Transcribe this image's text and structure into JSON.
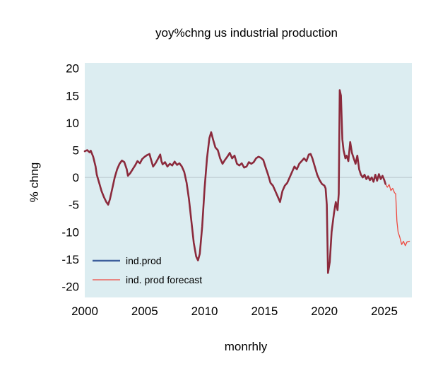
{
  "chart_data": {
    "type": "line",
    "title": "yoy%chng us industrial production",
    "xlabel": "monrhly",
    "ylabel": "% chng",
    "xlim": [
      2000,
      2027.3
    ],
    "ylim": [
      -22,
      21
    ],
    "xticks": [
      2000,
      2005,
      2010,
      2015,
      2020,
      2025
    ],
    "yticks": [
      20,
      15,
      10,
      5,
      0,
      -5,
      -10,
      -15,
      -20
    ],
    "grid": "horizontal line at 0",
    "legend_position": "bottom-left",
    "background": "#dcedf1",
    "series": [
      {
        "name": "ind.prod",
        "color": "#8b2a3c",
        "legend_color": "#3d5f9c",
        "points": [
          [
            2000.0,
            4.8
          ],
          [
            2000.2,
            5.0
          ],
          [
            2000.4,
            4.6
          ],
          [
            2000.5,
            4.9
          ],
          [
            2000.7,
            3.8
          ],
          [
            2000.9,
            2.0
          ],
          [
            2001.0,
            0.5
          ],
          [
            2001.2,
            -1.0
          ],
          [
            2001.4,
            -2.5
          ],
          [
            2001.6,
            -3.6
          ],
          [
            2001.8,
            -4.5
          ],
          [
            2001.95,
            -5.0
          ],
          [
            2002.1,
            -4.0
          ],
          [
            2002.3,
            -2.0
          ],
          [
            2002.5,
            0.0
          ],
          [
            2002.7,
            1.5
          ],
          [
            2002.9,
            2.5
          ],
          [
            2003.1,
            3.1
          ],
          [
            2003.3,
            2.8
          ],
          [
            2003.5,
            1.5
          ],
          [
            2003.6,
            0.3
          ],
          [
            2003.8,
            0.8
          ],
          [
            2004.0,
            1.5
          ],
          [
            2004.2,
            2.2
          ],
          [
            2004.4,
            3.0
          ],
          [
            2004.6,
            2.6
          ],
          [
            2004.8,
            3.4
          ],
          [
            2005.0,
            3.8
          ],
          [
            2005.2,
            4.1
          ],
          [
            2005.4,
            4.3
          ],
          [
            2005.5,
            3.5
          ],
          [
            2005.7,
            2.0
          ],
          [
            2005.9,
            2.6
          ],
          [
            2006.1,
            3.4
          ],
          [
            2006.3,
            4.2
          ],
          [
            2006.4,
            3.0
          ],
          [
            2006.5,
            2.4
          ],
          [
            2006.7,
            2.8
          ],
          [
            2006.9,
            2.0
          ],
          [
            2007.1,
            2.5
          ],
          [
            2007.3,
            2.2
          ],
          [
            2007.5,
            2.9
          ],
          [
            2007.7,
            2.3
          ],
          [
            2007.9,
            2.6
          ],
          [
            2008.1,
            2.0
          ],
          [
            2008.3,
            1.0
          ],
          [
            2008.5,
            -1.0
          ],
          [
            2008.7,
            -4.0
          ],
          [
            2008.9,
            -8.0
          ],
          [
            2009.1,
            -12.0
          ],
          [
            2009.3,
            -14.5
          ],
          [
            2009.45,
            -15.2
          ],
          [
            2009.6,
            -14.0
          ],
          [
            2009.8,
            -9.0
          ],
          [
            2010.0,
            -2.0
          ],
          [
            2010.2,
            3.5
          ],
          [
            2010.4,
            7.2
          ],
          [
            2010.55,
            8.3
          ],
          [
            2010.7,
            7.0
          ],
          [
            2010.9,
            5.5
          ],
          [
            2011.1,
            5.0
          ],
          [
            2011.3,
            3.5
          ],
          [
            2011.5,
            2.5
          ],
          [
            2011.7,
            3.2
          ],
          [
            2011.9,
            3.8
          ],
          [
            2012.1,
            4.5
          ],
          [
            2012.3,
            3.5
          ],
          [
            2012.5,
            4.0
          ],
          [
            2012.7,
            2.5
          ],
          [
            2012.9,
            2.2
          ],
          [
            2013.1,
            2.6
          ],
          [
            2013.3,
            1.8
          ],
          [
            2013.5,
            2.0
          ],
          [
            2013.7,
            2.8
          ],
          [
            2013.9,
            2.5
          ],
          [
            2014.1,
            2.8
          ],
          [
            2014.3,
            3.5
          ],
          [
            2014.5,
            3.8
          ],
          [
            2014.7,
            3.6
          ],
          [
            2014.9,
            3.2
          ],
          [
            2015.1,
            1.8
          ],
          [
            2015.3,
            0.5
          ],
          [
            2015.5,
            -1.0
          ],
          [
            2015.7,
            -1.5
          ],
          [
            2015.9,
            -2.5
          ],
          [
            2016.1,
            -3.5
          ],
          [
            2016.3,
            -4.5
          ],
          [
            2016.5,
            -2.5
          ],
          [
            2016.7,
            -1.5
          ],
          [
            2016.9,
            -1.0
          ],
          [
            2017.1,
            0.0
          ],
          [
            2017.3,
            1.0
          ],
          [
            2017.5,
            2.0
          ],
          [
            2017.7,
            1.5
          ],
          [
            2017.9,
            2.5
          ],
          [
            2018.1,
            3.0
          ],
          [
            2018.3,
            3.5
          ],
          [
            2018.5,
            3.0
          ],
          [
            2018.7,
            4.2
          ],
          [
            2018.85,
            4.3
          ],
          [
            2019.0,
            3.5
          ],
          [
            2019.2,
            2.0
          ],
          [
            2019.4,
            0.5
          ],
          [
            2019.6,
            -0.5
          ],
          [
            2019.8,
            -1.2
          ],
          [
            2020.0,
            -1.5
          ],
          [
            2020.1,
            -2.0
          ],
          [
            2020.2,
            -5.0
          ],
          [
            2020.3,
            -17.5
          ],
          [
            2020.45,
            -15.5
          ],
          [
            2020.6,
            -10.0
          ],
          [
            2020.8,
            -6.5
          ],
          [
            2020.95,
            -4.5
          ],
          [
            2021.1,
            -6.0
          ],
          [
            2021.2,
            -3.0
          ],
          [
            2021.28,
            16.0
          ],
          [
            2021.38,
            15.0
          ],
          [
            2021.5,
            7.0
          ],
          [
            2021.6,
            5.0
          ],
          [
            2021.75,
            3.5
          ],
          [
            2021.85,
            4.0
          ],
          [
            2022.0,
            3.0
          ],
          [
            2022.15,
            6.5
          ],
          [
            2022.3,
            4.5
          ],
          [
            2022.45,
            3.5
          ],
          [
            2022.6,
            2.5
          ],
          [
            2022.75,
            4.0
          ],
          [
            2022.9,
            1.5
          ],
          [
            2023.05,
            0.5
          ],
          [
            2023.2,
            0.0
          ],
          [
            2023.35,
            0.5
          ],
          [
            2023.5,
            -0.3
          ],
          [
            2023.65,
            0.2
          ],
          [
            2023.8,
            -0.5
          ],
          [
            2023.95,
            0.0
          ],
          [
            2024.1,
            -0.8
          ],
          [
            2024.25,
            0.5
          ],
          [
            2024.4,
            -0.6
          ],
          [
            2024.55,
            0.6
          ],
          [
            2024.7,
            -0.3
          ],
          [
            2024.85,
            0.3
          ],
          [
            2025.0,
            -0.5
          ],
          [
            2025.1,
            -1.2
          ]
        ]
      },
      {
        "name": "ind. prod forecast",
        "color": "#ee4a40",
        "points": [
          [
            2025.1,
            -1.2
          ],
          [
            2025.25,
            -1.8
          ],
          [
            2025.4,
            -1.3
          ],
          [
            2025.55,
            -2.4
          ],
          [
            2025.7,
            -2.0
          ],
          [
            2025.85,
            -2.8
          ],
          [
            2025.95,
            -3.0
          ],
          [
            2026.05,
            -8.0
          ],
          [
            2026.15,
            -10.0
          ],
          [
            2026.3,
            -11.0
          ],
          [
            2026.45,
            -12.3
          ],
          [
            2026.6,
            -11.7
          ],
          [
            2026.75,
            -12.5
          ],
          [
            2026.9,
            -11.8
          ],
          [
            2027.1,
            -11.7
          ]
        ]
      }
    ]
  }
}
